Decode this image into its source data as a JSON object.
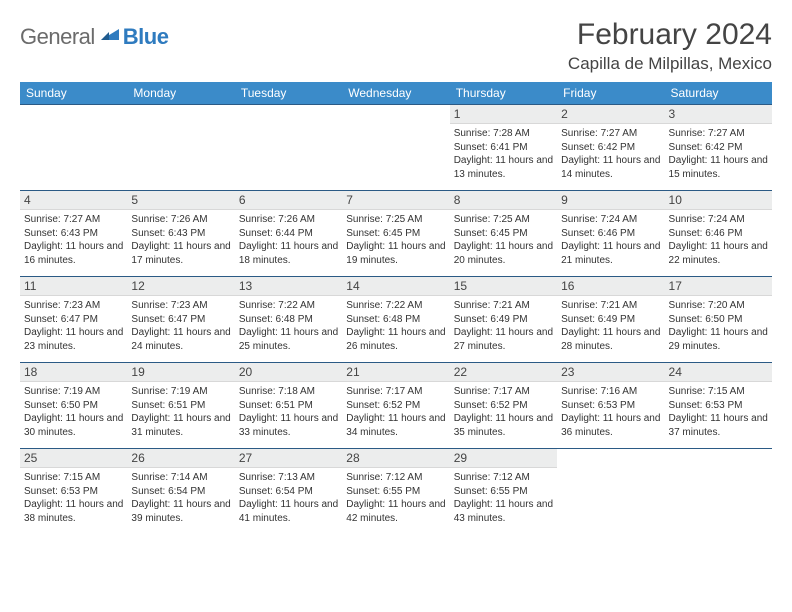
{
  "brand": {
    "general": "General",
    "blue": "Blue"
  },
  "header": {
    "month_title": "February 2024",
    "location": "Capilla de Milpillas, Mexico"
  },
  "colors": {
    "header_bg": "#3b8bc9",
    "bar_bg": "#eceded",
    "bar_border_top": "#2b5a85"
  },
  "day_names": [
    "Sunday",
    "Monday",
    "Tuesday",
    "Wednesday",
    "Thursday",
    "Friday",
    "Saturday"
  ],
  "weeks": [
    [
      null,
      null,
      null,
      null,
      {
        "n": "1",
        "sr": "7:28 AM",
        "ss": "6:41 PM",
        "dl": "11 hours and 13 minutes."
      },
      {
        "n": "2",
        "sr": "7:27 AM",
        "ss": "6:42 PM",
        "dl": "11 hours and 14 minutes."
      },
      {
        "n": "3",
        "sr": "7:27 AM",
        "ss": "6:42 PM",
        "dl": "11 hours and 15 minutes."
      }
    ],
    [
      {
        "n": "4",
        "sr": "7:27 AM",
        "ss": "6:43 PM",
        "dl": "11 hours and 16 minutes."
      },
      {
        "n": "5",
        "sr": "7:26 AM",
        "ss": "6:43 PM",
        "dl": "11 hours and 17 minutes."
      },
      {
        "n": "6",
        "sr": "7:26 AM",
        "ss": "6:44 PM",
        "dl": "11 hours and 18 minutes."
      },
      {
        "n": "7",
        "sr": "7:25 AM",
        "ss": "6:45 PM",
        "dl": "11 hours and 19 minutes."
      },
      {
        "n": "8",
        "sr": "7:25 AM",
        "ss": "6:45 PM",
        "dl": "11 hours and 20 minutes."
      },
      {
        "n": "9",
        "sr": "7:24 AM",
        "ss": "6:46 PM",
        "dl": "11 hours and 21 minutes."
      },
      {
        "n": "10",
        "sr": "7:24 AM",
        "ss": "6:46 PM",
        "dl": "11 hours and 22 minutes."
      }
    ],
    [
      {
        "n": "11",
        "sr": "7:23 AM",
        "ss": "6:47 PM",
        "dl": "11 hours and 23 minutes."
      },
      {
        "n": "12",
        "sr": "7:23 AM",
        "ss": "6:47 PM",
        "dl": "11 hours and 24 minutes."
      },
      {
        "n": "13",
        "sr": "7:22 AM",
        "ss": "6:48 PM",
        "dl": "11 hours and 25 minutes."
      },
      {
        "n": "14",
        "sr": "7:22 AM",
        "ss": "6:48 PM",
        "dl": "11 hours and 26 minutes."
      },
      {
        "n": "15",
        "sr": "7:21 AM",
        "ss": "6:49 PM",
        "dl": "11 hours and 27 minutes."
      },
      {
        "n": "16",
        "sr": "7:21 AM",
        "ss": "6:49 PM",
        "dl": "11 hours and 28 minutes."
      },
      {
        "n": "17",
        "sr": "7:20 AM",
        "ss": "6:50 PM",
        "dl": "11 hours and 29 minutes."
      }
    ],
    [
      {
        "n": "18",
        "sr": "7:19 AM",
        "ss": "6:50 PM",
        "dl": "11 hours and 30 minutes."
      },
      {
        "n": "19",
        "sr": "7:19 AM",
        "ss": "6:51 PM",
        "dl": "11 hours and 31 minutes."
      },
      {
        "n": "20",
        "sr": "7:18 AM",
        "ss": "6:51 PM",
        "dl": "11 hours and 33 minutes."
      },
      {
        "n": "21",
        "sr": "7:17 AM",
        "ss": "6:52 PM",
        "dl": "11 hours and 34 minutes."
      },
      {
        "n": "22",
        "sr": "7:17 AM",
        "ss": "6:52 PM",
        "dl": "11 hours and 35 minutes."
      },
      {
        "n": "23",
        "sr": "7:16 AM",
        "ss": "6:53 PM",
        "dl": "11 hours and 36 minutes."
      },
      {
        "n": "24",
        "sr": "7:15 AM",
        "ss": "6:53 PM",
        "dl": "11 hours and 37 minutes."
      }
    ],
    [
      {
        "n": "25",
        "sr": "7:15 AM",
        "ss": "6:53 PM",
        "dl": "11 hours and 38 minutes."
      },
      {
        "n": "26",
        "sr": "7:14 AM",
        "ss": "6:54 PM",
        "dl": "11 hours and 39 minutes."
      },
      {
        "n": "27",
        "sr": "7:13 AM",
        "ss": "6:54 PM",
        "dl": "11 hours and 41 minutes."
      },
      {
        "n": "28",
        "sr": "7:12 AM",
        "ss": "6:55 PM",
        "dl": "11 hours and 42 minutes."
      },
      {
        "n": "29",
        "sr": "7:12 AM",
        "ss": "6:55 PM",
        "dl": "11 hours and 43 minutes."
      },
      null,
      null
    ]
  ],
  "labels": {
    "sunrise": "Sunrise: ",
    "sunset": "Sunset: ",
    "daylight": "Daylight: "
  }
}
